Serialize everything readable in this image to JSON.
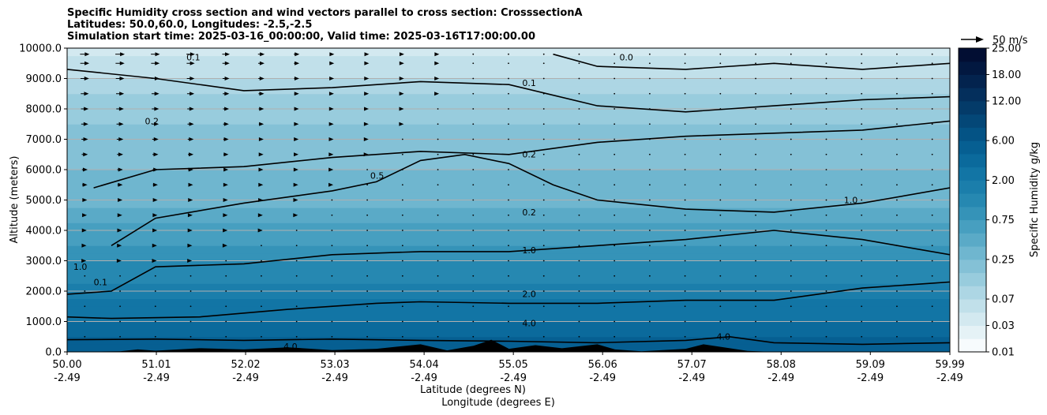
{
  "chart_data": {
    "type": "heatmap",
    "title_lines": [
      "Specific Humidity cross section and wind vectors parallel to cross section: CrosssectionA",
      "Latitudes: 50.0,60.0, Longitudes: -2.5,-2.5",
      "Simulation start time: 2025-03-16_00:00:00, Valid time: 2025-03-16T17:00:00.00"
    ],
    "ylabel": "Altitude (meters)",
    "xlabel_lat": "Latitude (degrees N)",
    "xlabel_lon": "Longitude (degrees E)",
    "ylim": [
      0,
      10000
    ],
    "y_ticks": [
      0,
      1000,
      2000,
      3000,
      4000,
      5000,
      6000,
      7000,
      8000,
      9000,
      10000
    ],
    "y_tick_labels": [
      "0.0",
      "1000.0",
      "2000.0",
      "3000.0",
      "4000.0",
      "5000.0",
      "6000.0",
      "7000.0",
      "8000.0",
      "9000.0",
      "10000.0"
    ],
    "xlim": [
      50.0,
      59.99
    ],
    "x_ticks": [
      50.0,
      51.01,
      52.02,
      53.03,
      54.04,
      55.05,
      56.06,
      57.07,
      58.08,
      59.09,
      59.99
    ],
    "x_tick_lat_labels": [
      "50.00",
      "51.01",
      "52.02",
      "53.03",
      "54.04",
      "55.05",
      "56.06",
      "57.07",
      "58.08",
      "59.09",
      "59.99"
    ],
    "x_tick_lon_labels": [
      "-2.49",
      "-2.49",
      "-2.49",
      "-2.49",
      "-2.49",
      "-2.49",
      "-2.49",
      "-2.49",
      "-2.49",
      "-2.49",
      "-2.49"
    ],
    "grid": "horizontal",
    "colorbar": {
      "label": "Specific Humidity g/kg",
      "tick_labels": [
        "0.01",
        "0.03",
        "0.07",
        "0.25",
        "0.75",
        "2.00",
        "6.00",
        "12.00",
        "18.00",
        "25.00"
      ],
      "tick_levels": [
        0.01,
        0.03,
        0.07,
        0.25,
        0.75,
        2.0,
        6.0,
        12.0,
        18.0,
        25.0
      ],
      "levels": [
        0.01,
        0.02,
        0.03,
        0.05,
        0.07,
        0.1,
        0.15,
        0.25,
        0.4,
        0.5,
        0.75,
        1.0,
        1.5,
        2.0,
        3.0,
        4.0,
        6.0,
        8.0,
        10.0,
        12.0,
        15.0,
        18.0,
        20.0,
        25.0
      ],
      "colors": [
        "#f7fbfd",
        "#e5f2f6",
        "#d3e9f0",
        "#c1e0ea",
        "#add6e4",
        "#98ccdd",
        "#84c1d6",
        "#6fb6cf",
        "#5aaac7",
        "#479fc0",
        "#3593b8",
        "#2688b1",
        "#1b7eab",
        "#1275a5",
        "#0b6a9c",
        "#065f92",
        "#045385",
        "#044777",
        "#043b69",
        "#042f5c",
        "#03234e",
        "#021840",
        "#020e33"
      ]
    },
    "quiver_key": {
      "label": "50 m/s",
      "speed": 50
    },
    "humidity_profile": {
      "altitude": [
        0,
        500,
        1000,
        1500,
        2000,
        2500,
        3000,
        3500,
        4000,
        5000,
        6000,
        7000,
        8000,
        9000,
        10000
      ],
      "q_gkg": [
        5.0,
        4.2,
        3.2,
        2.2,
        1.6,
        1.2,
        1.0,
        0.8,
        0.55,
        0.35,
        0.25,
        0.18,
        0.12,
        0.07,
        0.04
      ]
    },
    "contours": [
      {
        "level": "4.0",
        "points": [
          [
            50.0,
            400
          ],
          [
            51.0,
            420
          ],
          [
            52.0,
            380
          ],
          [
            53.0,
            420
          ],
          [
            54.0,
            380
          ],
          [
            55.0,
            350
          ],
          [
            56.0,
            300
          ],
          [
            57.0,
            380
          ],
          [
            57.5,
            500
          ],
          [
            58.0,
            300
          ],
          [
            59.0,
            250
          ],
          [
            59.99,
            300
          ]
        ]
      },
      {
        "level": "2.0",
        "points": [
          [
            50.0,
            1150
          ],
          [
            50.5,
            1100
          ],
          [
            51.5,
            1150
          ],
          [
            52.5,
            1400
          ],
          [
            53.5,
            1600
          ],
          [
            54.0,
            1650
          ],
          [
            55.0,
            1600
          ],
          [
            56.0,
            1600
          ],
          [
            57.0,
            1700
          ],
          [
            58.0,
            1700
          ],
          [
            59.0,
            2100
          ],
          [
            59.99,
            2300
          ]
        ]
      },
      {
        "level": "1.0",
        "points": [
          [
            50.0,
            1900
          ],
          [
            50.5,
            2000
          ],
          [
            51.0,
            2800
          ],
          [
            52.0,
            2900
          ],
          [
            53.0,
            3200
          ],
          [
            54.0,
            3300
          ],
          [
            55.0,
            3300
          ],
          [
            56.0,
            3500
          ],
          [
            57.0,
            3700
          ],
          [
            58.0,
            4000
          ],
          [
            59.0,
            3700
          ],
          [
            59.99,
            3200
          ]
        ]
      },
      {
        "level": "0.5",
        "points": [
          [
            50.5,
            3500
          ],
          [
            51.0,
            4400
          ],
          [
            52.0,
            4900
          ],
          [
            52.5,
            5100
          ],
          [
            53.0,
            5300
          ],
          [
            53.5,
            5600
          ],
          [
            54.0,
            6300
          ],
          [
            54.5,
            6500
          ],
          [
            55.0,
            6200
          ],
          [
            55.5,
            5500
          ],
          [
            56.0,
            5000
          ],
          [
            57.0,
            4700
          ],
          [
            58.0,
            4600
          ],
          [
            59.0,
            4900
          ],
          [
            59.99,
            5400
          ]
        ]
      },
      {
        "level": "0.2",
        "points": [
          [
            50.3,
            5400
          ],
          [
            51.0,
            6000
          ],
          [
            52.0,
            6100
          ],
          [
            53.0,
            6400
          ],
          [
            54.0,
            6600
          ],
          [
            55.0,
            6500
          ],
          [
            56.0,
            6900
          ],
          [
            57.0,
            7100
          ],
          [
            58.0,
            7200
          ],
          [
            59.0,
            7300
          ],
          [
            59.99,
            7600
          ]
        ]
      },
      {
        "level": "0.1",
        "points": [
          [
            50.0,
            9300
          ],
          [
            51.0,
            9000
          ],
          [
            52.0,
            8600
          ],
          [
            53.0,
            8700
          ],
          [
            54.0,
            8900
          ],
          [
            55.0,
            8800
          ],
          [
            56.0,
            8100
          ],
          [
            57.0,
            7900
          ],
          [
            58.0,
            8100
          ],
          [
            59.0,
            8300
          ],
          [
            59.99,
            8400
          ]
        ]
      },
      {
        "level": "0.0",
        "points": [
          [
            55.5,
            9800
          ],
          [
            56.0,
            9400
          ],
          [
            57.0,
            9300
          ],
          [
            58.0,
            9500
          ],
          [
            59.0,
            9300
          ],
          [
            59.99,
            9500
          ]
        ]
      }
    ],
    "contour_labels": [
      {
        "text": "4.0",
        "x": 55.15,
        "y": 850
      },
      {
        "text": "2.0",
        "x": 55.15,
        "y": 1800
      },
      {
        "text": "1.0",
        "x": 55.15,
        "y": 3250
      },
      {
        "text": "0.2",
        "x": 55.15,
        "y": 4500
      },
      {
        "text": "0.2",
        "x": 55.15,
        "y": 6400
      },
      {
        "text": "0.1",
        "x": 55.15,
        "y": 8750
      },
      {
        "text": "0.0",
        "x": 56.25,
        "y": 9600
      },
      {
        "text": "0.5",
        "x": 53.43,
        "y": 5700
      },
      {
        "text": "0.2",
        "x": 50.88,
        "y": 7500
      },
      {
        "text": "0.1",
        "x": 51.35,
        "y": 9600
      },
      {
        "text": "1.0",
        "x": 58.79,
        "y": 4900
      },
      {
        "text": "4.0",
        "x": 52.45,
        "y": 80
      },
      {
        "text": "4.0",
        "x": 57.35,
        "y": 400
      },
      {
        "text": "1.0",
        "x": 50.07,
        "y": 2700
      },
      {
        "text": "0.1",
        "x": 50.3,
        "y": 2200
      }
    ],
    "wind": {
      "columns": 25,
      "altitude_levels": [
        500,
        1000,
        1500,
        2000,
        2500,
        3000,
        3500,
        4000,
        4500,
        5000,
        5500,
        6000,
        6500,
        7000,
        7500,
        8000,
        8500,
        9000,
        9500,
        9800
      ],
      "speed_profile_ms": [
        2,
        2,
        3,
        4,
        5,
        6,
        7,
        8,
        9,
        10,
        11,
        12,
        13,
        14,
        15,
        16,
        17,
        18,
        19,
        20
      ],
      "decay_by_latitude": [
        1.0,
        1.0,
        0.95,
        0.9,
        0.8,
        0.7,
        0.6,
        0.5,
        0.4,
        0.35,
        0.3,
        0.25,
        0.2,
        0.15,
        0.12,
        0.1,
        0.08,
        0.06,
        0.05,
        0.04,
        0.03,
        0.02,
        0.02,
        0.01,
        0.01
      ]
    },
    "terrain": [
      [
        50.0,
        0
      ],
      [
        50.6,
        20
      ],
      [
        50.8,
        80
      ],
      [
        51.0,
        40
      ],
      [
        51.5,
        120
      ],
      [
        52.0,
        80
      ],
      [
        52.5,
        150
      ],
      [
        53.0,
        60
      ],
      [
        53.5,
        100
      ],
      [
        54.0,
        250
      ],
      [
        54.3,
        50
      ],
      [
        54.6,
        200
      ],
      [
        54.8,
        400
      ],
      [
        55.0,
        100
      ],
      [
        55.3,
        220
      ],
      [
        55.6,
        120
      ],
      [
        56.0,
        250
      ],
      [
        56.2,
        80
      ],
      [
        56.5,
        20
      ],
      [
        57.0,
        100
      ],
      [
        57.2,
        250
      ],
      [
        57.5,
        120
      ],
      [
        57.7,
        30
      ],
      [
        58.0,
        0
      ],
      [
        59.99,
        0
      ]
    ]
  }
}
